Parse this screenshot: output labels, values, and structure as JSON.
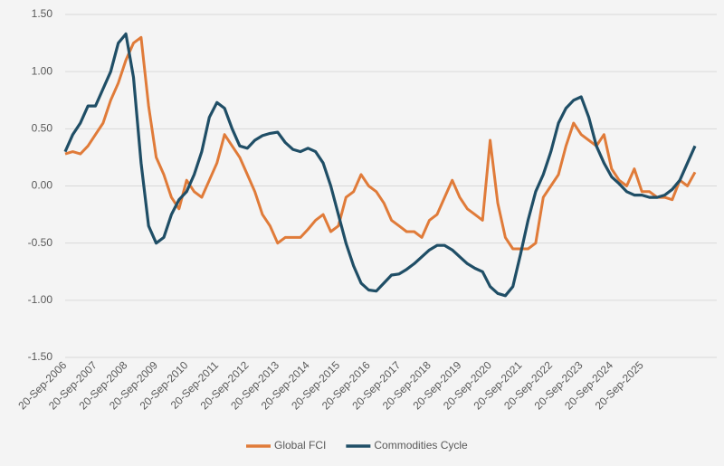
{
  "chart_data": {
    "type": "line",
    "categories": [
      "20-Sep-2006",
      null,
      null,
      null,
      "20-Sep-2007",
      null,
      null,
      null,
      "20-Sep-2008",
      null,
      null,
      null,
      "20-Sep-2009",
      null,
      null,
      null,
      "20-Sep-2010",
      null,
      null,
      null,
      "20-Sep-2011",
      null,
      null,
      null,
      "20-Sep-2012",
      null,
      null,
      null,
      "20-Sep-2013",
      null,
      null,
      null,
      "20-Sep-2014",
      null,
      null,
      null,
      "20-Sep-2015",
      null,
      null,
      null,
      "20-Sep-2016",
      null,
      null,
      null,
      "20-Sep-2017",
      null,
      null,
      null,
      "20-Sep-2018",
      null,
      null,
      null,
      "20-Sep-2019",
      null,
      null,
      null,
      "20-Sep-2020",
      null,
      null,
      null,
      "20-Sep-2021",
      null,
      null,
      null,
      "20-Sep-2022",
      null,
      null,
      null,
      "20-Sep-2023",
      null,
      null,
      null,
      "20-Sep-2024",
      null,
      null,
      null,
      "20-Sep-2025",
      null,
      null,
      null,
      null,
      null,
      null,
      null
    ],
    "series": [
      {
        "name": "Global FCI",
        "color": "#e07b39",
        "values": [
          0.28,
          0.3,
          0.28,
          0.35,
          0.45,
          0.55,
          0.75,
          0.9,
          1.1,
          1.25,
          1.3,
          0.7,
          0.25,
          0.1,
          -0.1,
          -0.2,
          0.05,
          -0.05,
          -0.1,
          0.05,
          0.2,
          0.45,
          0.35,
          0.25,
          0.1,
          -0.05,
          -0.25,
          -0.35,
          -0.5,
          -0.45,
          -0.45,
          -0.45,
          -0.38,
          -0.3,
          -0.25,
          -0.4,
          -0.35,
          -0.1,
          -0.05,
          0.1,
          0.0,
          -0.05,
          -0.15,
          -0.3,
          -0.35,
          -0.4,
          -0.4,
          -0.45,
          -0.3,
          -0.25,
          -0.1,
          0.05,
          -0.1,
          -0.2,
          -0.25,
          -0.3,
          0.4,
          -0.15,
          -0.45,
          -0.55,
          -0.55,
          -0.55,
          -0.5,
          -0.1,
          0.0,
          0.1,
          0.35,
          0.55,
          0.45,
          0.4,
          0.35,
          0.45,
          0.15,
          0.05,
          0.0,
          0.15,
          -0.05,
          -0.05,
          -0.1,
          -0.1,
          -0.12,
          0.05,
          0.0,
          0.12
        ]
      },
      {
        "name": "Commodities Cycle",
        "color": "#1f4e66",
        "values": [
          0.3,
          0.45,
          0.55,
          0.7,
          0.7,
          0.85,
          1.0,
          1.25,
          1.33,
          0.95,
          0.2,
          -0.35,
          -0.5,
          -0.45,
          -0.25,
          -0.12,
          -0.05,
          0.1,
          0.3,
          0.6,
          0.73,
          0.68,
          0.5,
          0.35,
          0.33,
          0.4,
          0.44,
          0.46,
          0.47,
          0.38,
          0.32,
          0.3,
          0.33,
          0.3,
          0.2,
          0.0,
          -0.25,
          -0.5,
          -0.7,
          -0.85,
          -0.91,
          -0.92,
          -0.85,
          -0.78,
          -0.77,
          -0.73,
          -0.68,
          -0.62,
          -0.56,
          -0.52,
          -0.52,
          -0.56,
          -0.62,
          -0.68,
          -0.72,
          -0.75,
          -0.88,
          -0.94,
          -0.96,
          -0.88,
          -0.6,
          -0.3,
          -0.05,
          0.1,
          0.3,
          0.55,
          0.68,
          0.75,
          0.78,
          0.6,
          0.35,
          0.2,
          0.08,
          0.02,
          -0.05,
          -0.08,
          -0.08,
          -0.1,
          -0.1,
          -0.08,
          -0.03,
          0.05,
          0.2,
          0.35
        ]
      }
    ],
    "ylim": [
      -1.5,
      1.5
    ],
    "yticks": [
      {
        "value": -1.5,
        "label": "-1.50"
      },
      {
        "value": -1.0,
        "label": "-1.00"
      },
      {
        "value": -0.5,
        "label": "-0.50"
      },
      {
        "value": 0,
        "label": "0.00"
      },
      {
        "value": 0.5,
        "label": "0.50"
      },
      {
        "value": 1.0,
        "label": "1.00"
      },
      {
        "value": 1.5,
        "label": "1.50"
      }
    ],
    "grid": true,
    "legend": "bottom"
  }
}
